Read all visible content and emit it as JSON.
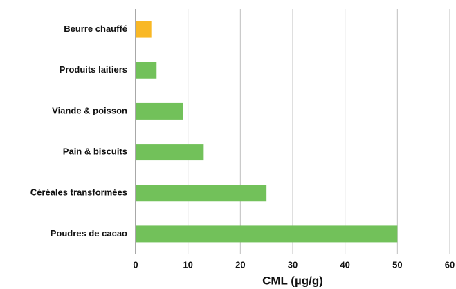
{
  "chart_data": {
    "type": "bar",
    "orientation": "horizontal",
    "categories": [
      "Beurre chauffé",
      "Produits laitiers",
      "Viande & poisson",
      "Pain & biscuits",
      "Céréales transformées",
      "Poudres de cacao"
    ],
    "values": [
      3,
      4,
      9,
      13,
      25,
      50
    ],
    "colors": [
      "#f9b825",
      "#72c15a",
      "#72c15a",
      "#72c15a",
      "#72c15a",
      "#72c15a"
    ],
    "xlabel": "CML (µg/g)",
    "xlim": [
      0,
      60
    ],
    "xticks": [
      0,
      10,
      20,
      30,
      40,
      50,
      60
    ],
    "grid": true
  }
}
